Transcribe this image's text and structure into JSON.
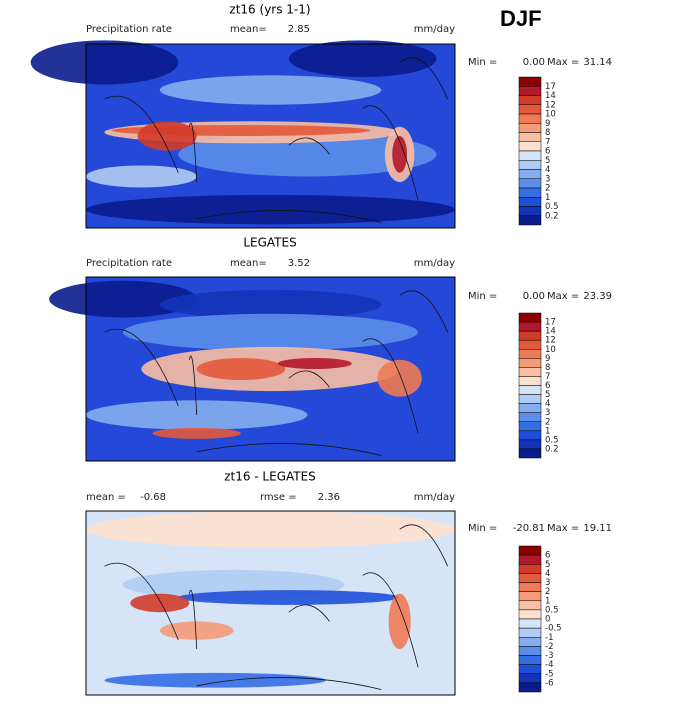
{
  "season": "DJF",
  "panels": [
    {
      "title": "zt16 (yrs 1-1)",
      "left_label": "Precipitation rate",
      "stats": [
        {
          "label": "mean=",
          "value": "2.85"
        }
      ],
      "units": "mm/day",
      "min_label": "Min =",
      "min": "0.00",
      "max_label": "Max =",
      "max": "31.14",
      "colorbar": {
        "labels": [
          "17",
          "14",
          "12",
          "10",
          "9",
          "8",
          "7",
          "6",
          "5",
          "4",
          "3",
          "2",
          "1",
          "0.5",
          "0.2"
        ],
        "colors": [
          "#8b0000",
          "#b2182b",
          "#d13b2a",
          "#e35a3c",
          "#ef7a55",
          "#f59b78",
          "#fabea2",
          "#fde0cf",
          "#d6e4f7",
          "#b0ccf3",
          "#85aef0",
          "#5b8eea",
          "#356de3",
          "#1f4fd8",
          "#1433b8",
          "#0a1c8c"
        ]
      }
    },
    {
      "title": "LEGATES",
      "left_label": "Precipitation rate",
      "stats": [
        {
          "label": "mean=",
          "value": "3.52"
        }
      ],
      "units": "mm/day",
      "min_label": "Min =",
      "min": "0.00",
      "max_label": "Max =",
      "max": "23.39",
      "colorbar": {
        "labels": [
          "17",
          "14",
          "12",
          "10",
          "9",
          "8",
          "7",
          "6",
          "5",
          "4",
          "3",
          "2",
          "1",
          "0.5",
          "0.2"
        ],
        "colors": [
          "#8b0000",
          "#b2182b",
          "#d13b2a",
          "#e35a3c",
          "#ef7a55",
          "#f59b78",
          "#fabea2",
          "#fde0cf",
          "#d6e4f7",
          "#b0ccf3",
          "#85aef0",
          "#5b8eea",
          "#356de3",
          "#1f4fd8",
          "#1433b8",
          "#0a1c8c"
        ]
      }
    },
    {
      "title": "zt16 - LEGATES",
      "left_label": null,
      "stats": [
        {
          "label": "mean =",
          "value": "-0.68"
        },
        {
          "label": "rmse =",
          "value": "2.36"
        }
      ],
      "units": "mm/day",
      "min_label": "Min =",
      "min": "-20.81",
      "max_label": "Max =",
      "max": "19.11",
      "colorbar": {
        "labels": [
          "6",
          "5",
          "4",
          "3",
          "2",
          "1",
          "0.5",
          "0",
          "-0.5",
          "-1",
          "-2",
          "-3",
          "-4",
          "-5",
          "-6"
        ],
        "colors": [
          "#8b0000",
          "#b2182b",
          "#d13b2a",
          "#e35a3c",
          "#ef7a55",
          "#f59b78",
          "#fabea2",
          "#fde0cf",
          "#d6e4f7",
          "#b0ccf3",
          "#85aef0",
          "#5b8eea",
          "#356de3",
          "#1f4fd8",
          "#1433b8",
          "#0a1c8c"
        ]
      }
    }
  ]
}
